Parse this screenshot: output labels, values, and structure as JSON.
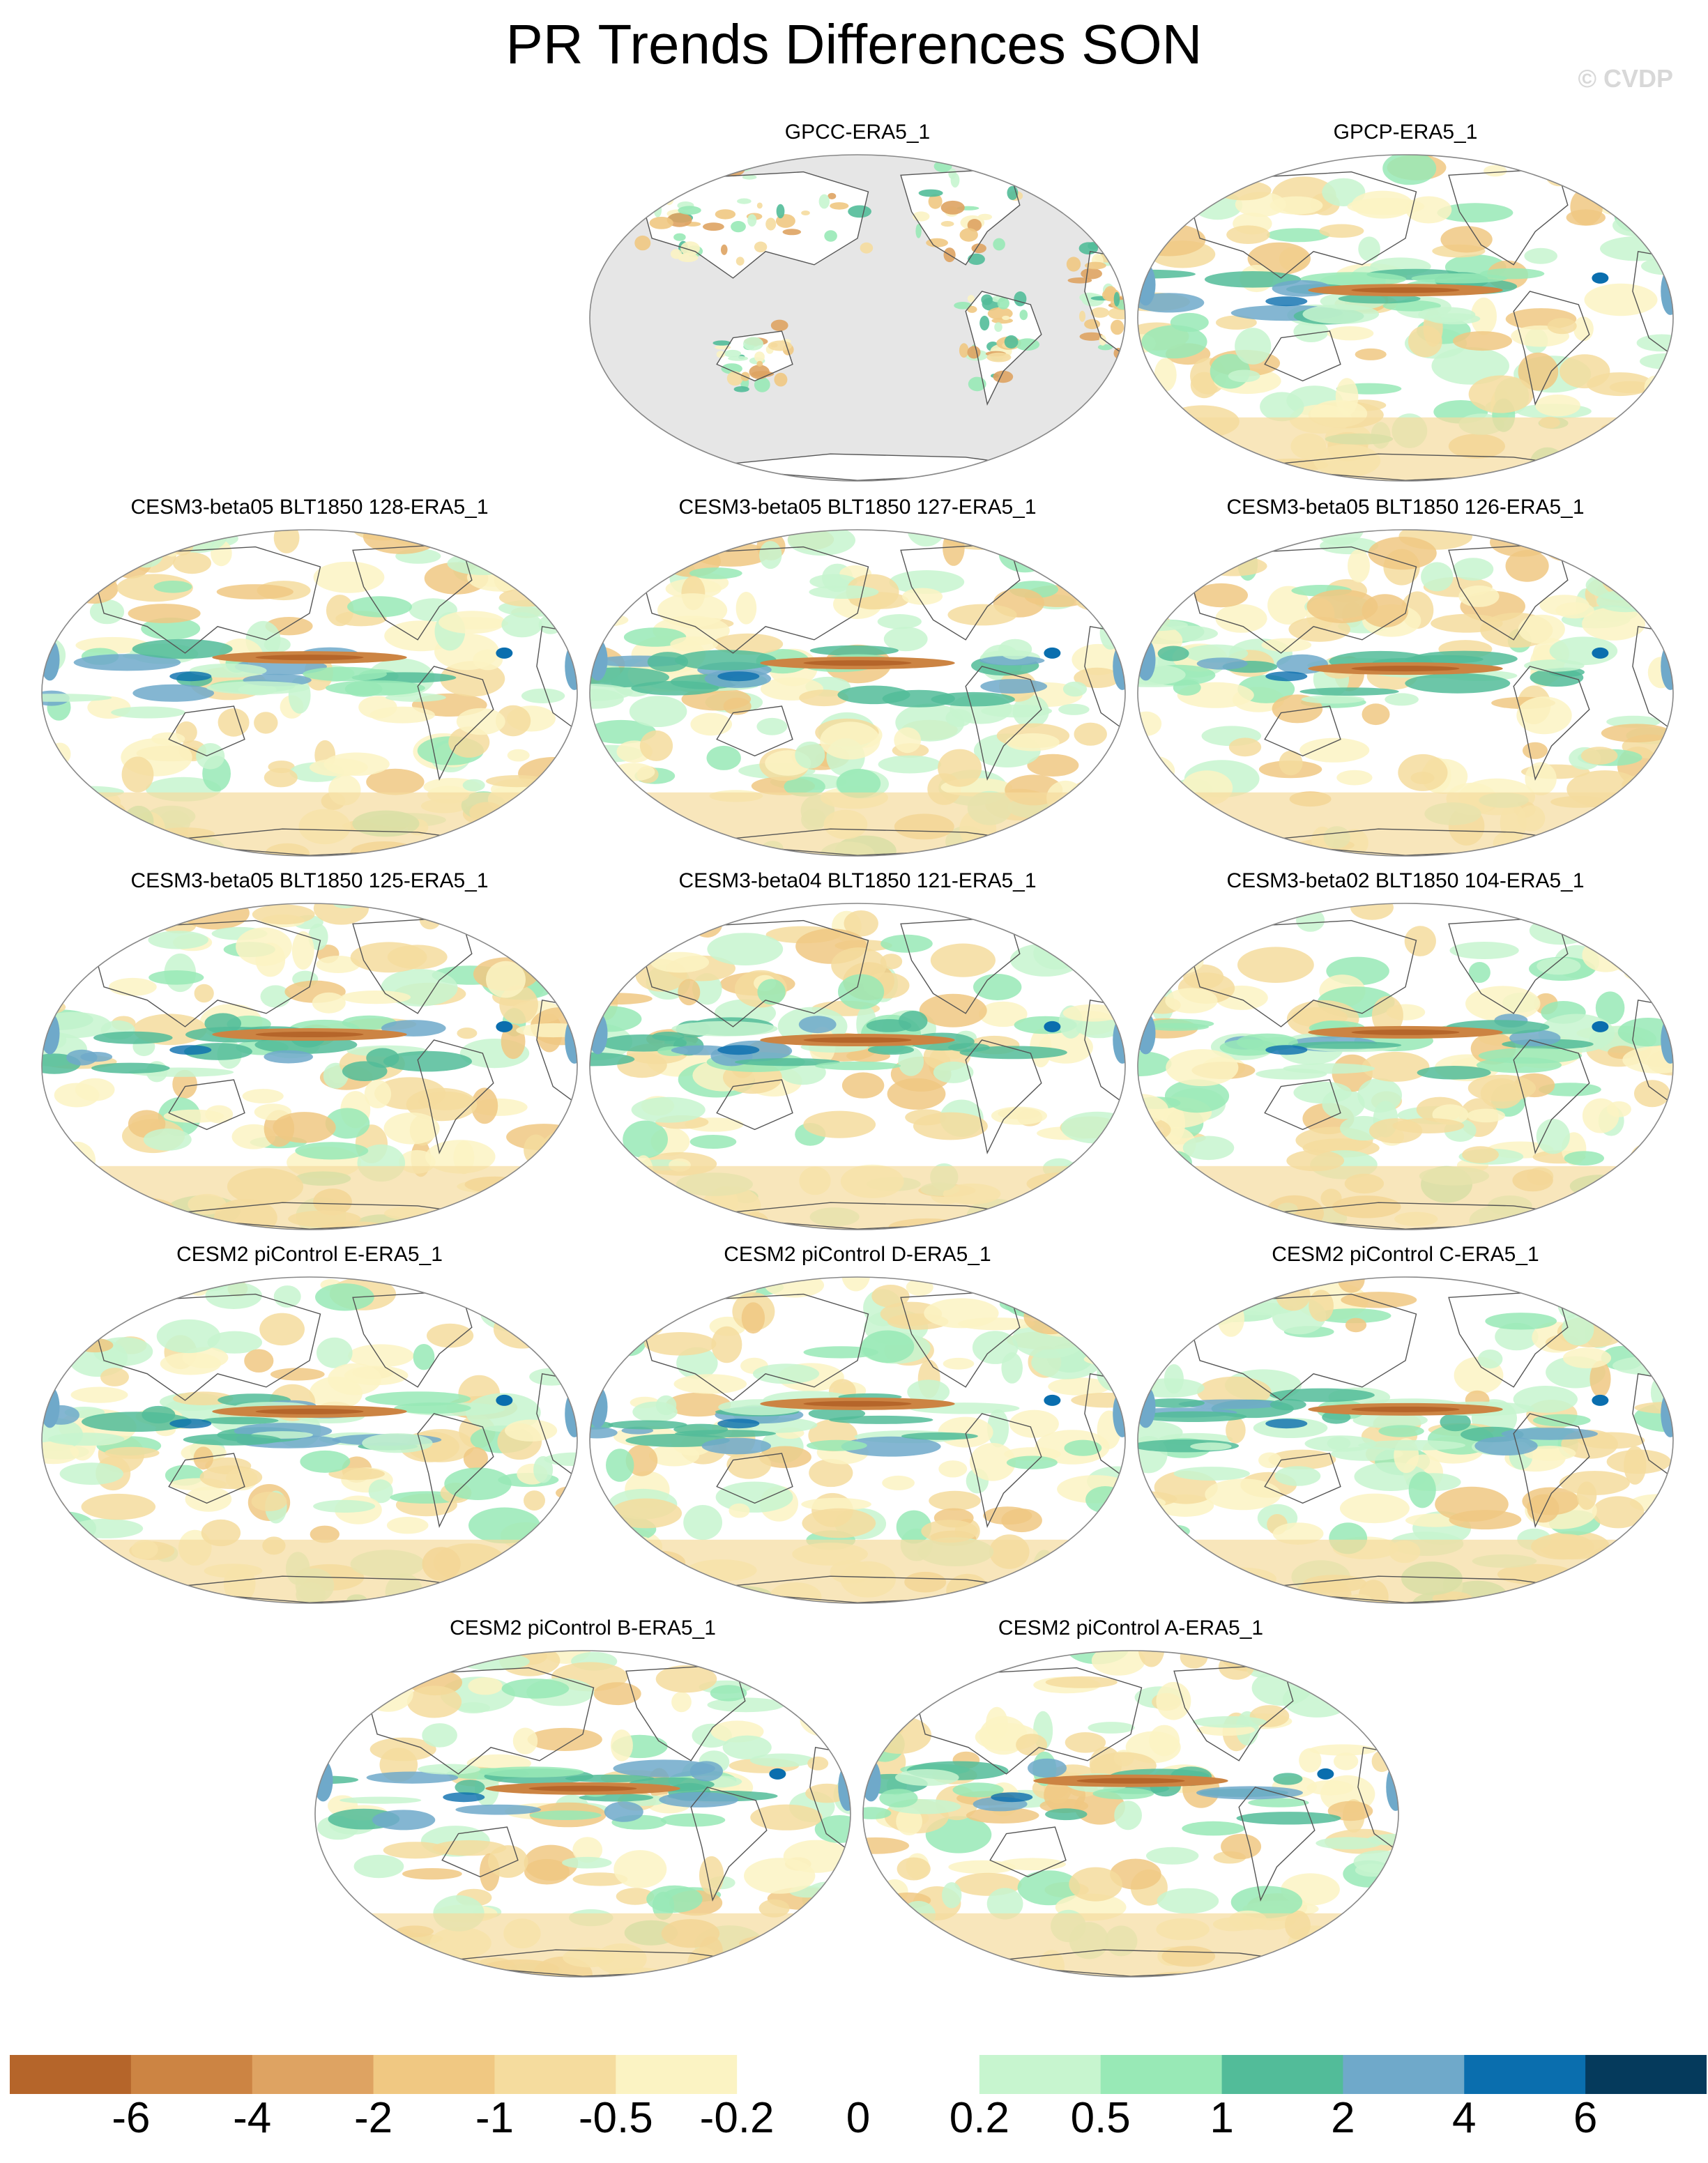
{
  "title": "PR Trends Differences SON",
  "watermark": "© CVDP",
  "panels": [
    {
      "label": "GPCC-ERA5_1",
      "land_only": true
    },
    {
      "label": "GPCP-ERA5_1"
    },
    {
      "label": "CESM3-beta05 BLT1850 128-ERA5_1"
    },
    {
      "label": "CESM3-beta05 BLT1850 127-ERA5_1"
    },
    {
      "label": "CESM3-beta05 BLT1850 126-ERA5_1"
    },
    {
      "label": "CESM3-beta05 BLT1850 125-ERA5_1"
    },
    {
      "label": "CESM3-beta04 BLT1850 121-ERA5_1"
    },
    {
      "label": "CESM3-beta02 BLT1850 104-ERA5_1"
    },
    {
      "label": "CESM2 piControl E-ERA5_1"
    },
    {
      "label": "CESM2 piControl D-ERA5_1"
    },
    {
      "label": "CESM2 piControl C-ERA5_1"
    },
    {
      "label": "CESM2 piControl B-ERA5_1"
    },
    {
      "label": "CESM2 piControl A-ERA5_1"
    }
  ],
  "colorbar": {
    "colors": [
      "#b5652a",
      "#cc8443",
      "#dea362",
      "#f0c882",
      "#f5dc9e",
      "#fbf3c3",
      "#ffffff",
      "#ffffff",
      "#c7f5cf",
      "#98e9b6",
      "#52bc99",
      "#6fa9ca",
      "#0a6eae",
      "#053a5c"
    ],
    "labels": [
      "-6",
      "-4",
      "-2",
      "-1",
      "-0.5",
      "-0.2",
      "0",
      "0.2",
      "0.5",
      "1",
      "2",
      "4",
      "6"
    ]
  },
  "colors": {
    "land_mask": "#e6e6e6",
    "coast": "#555555",
    "outline": "#888888"
  }
}
